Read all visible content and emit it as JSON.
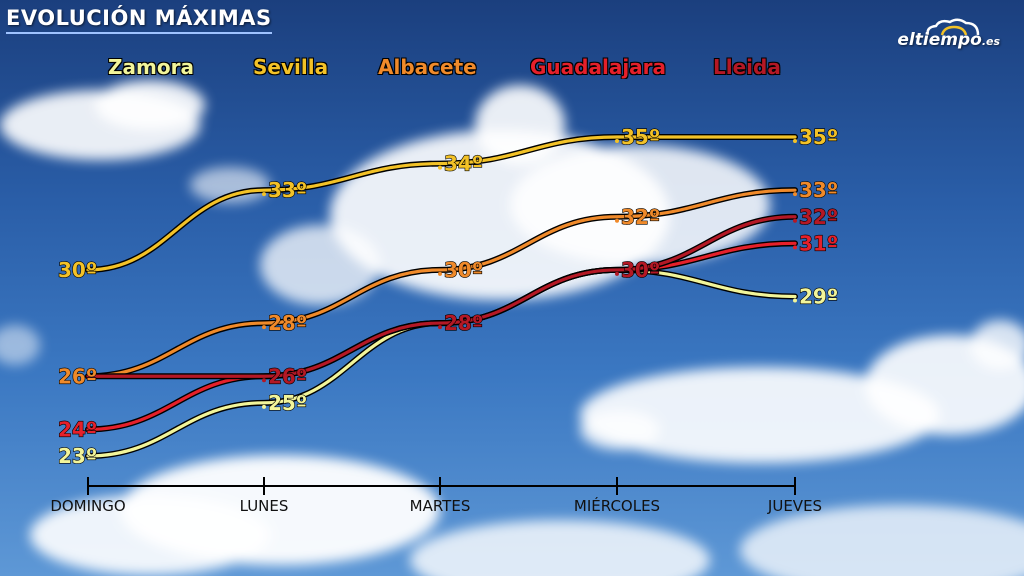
{
  "header": {
    "title": "EVOLUCIÓN MÁXIMAS",
    "brand": "eltiempo",
    "brand_tld": ".es"
  },
  "chart_data": {
    "type": "line",
    "title": "EVOLUCIÓN MÁXIMAS",
    "categories": [
      "DOMINGO",
      "LUNES",
      "MARTES",
      "MIÉRCOLES",
      "JUEVES"
    ],
    "unit": "º",
    "ylim": [
      22,
      36
    ],
    "grid": false,
    "legend_position": "top",
    "series": [
      {
        "name": "Zamora",
        "color": "#f2f59a",
        "values": [
          23,
          25,
          28,
          30,
          29
        ]
      },
      {
        "name": "Sevilla",
        "color": "#f3c227",
        "values": [
          30,
          33,
          34,
          35,
          35
        ]
      },
      {
        "name": "Albacete",
        "color": "#f08a2a",
        "values": [
          26,
          28,
          30,
          32,
          33
        ]
      },
      {
        "name": "Guadalajara",
        "color": "#e5202a",
        "values": [
          24,
          26,
          28,
          30,
          31
        ]
      },
      {
        "name": "Lleida",
        "color": "#b41825",
        "values": [
          26,
          26,
          28,
          30,
          32
        ]
      }
    ]
  }
}
